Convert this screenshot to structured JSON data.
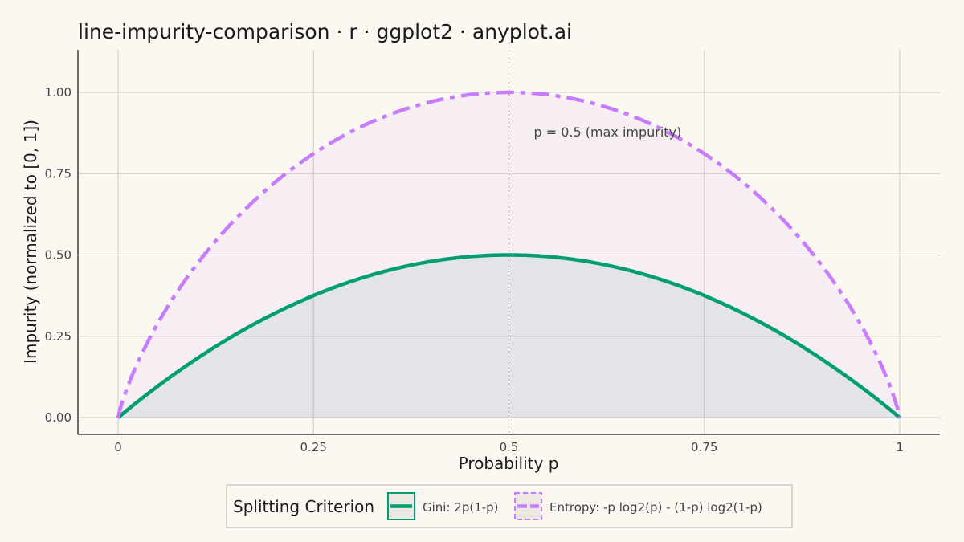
{
  "chart_data": {
    "type": "line",
    "title": "line-impurity-comparison · r · ggplot2 · anyplot.ai",
    "xlabel": "Probability p",
    "ylabel": "Impurity (normalized to [0, 1])",
    "xlim": [
      0,
      1
    ],
    "ylim": [
      0,
      1
    ],
    "x_ticks": [
      0,
      0.25,
      0.5,
      0.75,
      1
    ],
    "x_tick_labels": [
      "0",
      "0.25",
      "0.5",
      "0.75",
      "1"
    ],
    "y_ticks": [
      0,
      0.25,
      0.5,
      0.75,
      1
    ],
    "y_tick_labels": [
      "0.00",
      "0.25",
      "0.50",
      "0.75",
      "1.00"
    ],
    "grid": true,
    "legend_position": "bottom",
    "legend_title": "Splitting Criterion",
    "series": [
      {
        "name": "Gini: 2p(1-p)",
        "color": "#009E73",
        "line_style": "solid",
        "fill": "area",
        "x": [
          0,
          0.05,
          0.1,
          0.15,
          0.2,
          0.25,
          0.3,
          0.35,
          0.4,
          0.45,
          0.5,
          0.55,
          0.6,
          0.65,
          0.7,
          0.75,
          0.8,
          0.85,
          0.9,
          0.95,
          1
        ],
        "values": [
          0,
          0.095,
          0.18,
          0.255,
          0.32,
          0.375,
          0.42,
          0.455,
          0.48,
          0.495,
          0.5,
          0.495,
          0.48,
          0.455,
          0.42,
          0.375,
          0.32,
          0.255,
          0.18,
          0.095,
          0
        ]
      },
      {
        "name": "Entropy: -p log2(p) - (1-p) log2(1-p)",
        "color": "#C77CFF",
        "line_style": "dashed",
        "fill": "area",
        "x": [
          0,
          0.05,
          0.1,
          0.15,
          0.2,
          0.25,
          0.3,
          0.35,
          0.4,
          0.45,
          0.5,
          0.55,
          0.6,
          0.65,
          0.7,
          0.75,
          0.8,
          0.85,
          0.9,
          0.95,
          1
        ],
        "values": [
          0,
          0.286,
          0.469,
          0.61,
          0.722,
          0.811,
          0.881,
          0.934,
          0.971,
          0.993,
          1,
          0.993,
          0.971,
          0.934,
          0.881,
          0.811,
          0.722,
          0.61,
          0.469,
          0.286,
          0
        ]
      }
    ],
    "annotations": [
      {
        "text": "p = 0.5 (max impurity)",
        "x": 0.5,
        "line": "vertical-dotted"
      }
    ]
  }
}
